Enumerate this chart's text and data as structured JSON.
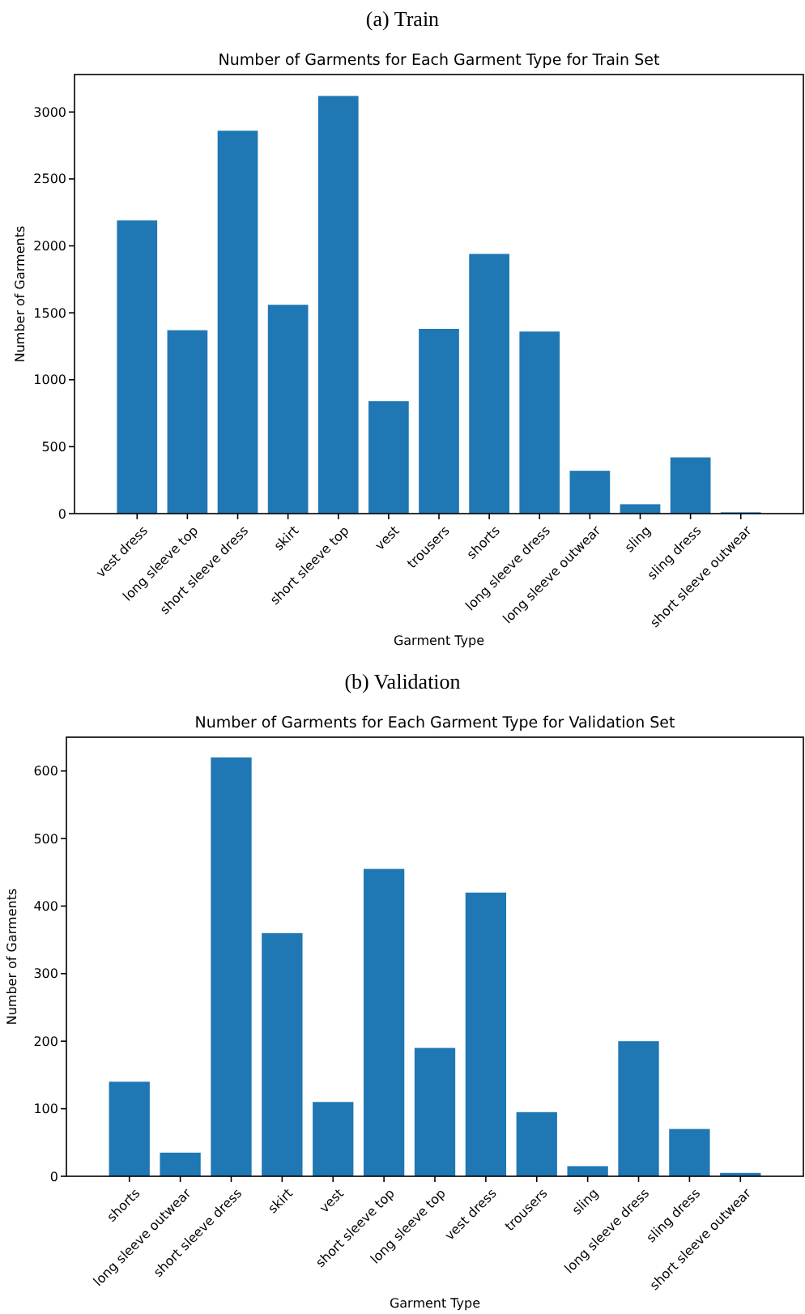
{
  "chart_data": [
    {
      "type": "bar",
      "title": "(a) Train",
      "subtitle": "Number of Garments for Each Garment Type for Train Set",
      "xlabel": "Garment Type",
      "ylabel": "Number of Garments",
      "categories": [
        "vest dress",
        "long sleeve top",
        "short sleeve dress",
        "skirt",
        "short sleeve top",
        "vest",
        "trousers",
        "shorts",
        "long sleeve dress",
        "long sleeve outwear",
        "sling",
        "sling dress",
        "short sleeve outwear"
      ],
      "values": [
        2190,
        1370,
        2860,
        1560,
        3120,
        840,
        1380,
        1940,
        1360,
        320,
        70,
        420,
        10
      ],
      "color": "#1f77b4",
      "ylim": [
        0,
        3280
      ],
      "yticks": [
        0,
        500,
        1000,
        1500,
        2000,
        2500,
        3000
      ]
    },
    {
      "type": "bar",
      "title": "(b) Validation",
      "subtitle": "Number of Garments for Each Garment Type for Validation Set",
      "xlabel": "Garment Type",
      "ylabel": "Number of Garments",
      "categories": [
        "shorts",
        "long sleeve outwear",
        "short sleeve dress",
        "skirt",
        "vest",
        "short sleeve top",
        "long sleeve top",
        "vest dress",
        "trousers",
        "sling",
        "long sleeve dress",
        "sling dress",
        "short sleeve outwear"
      ],
      "values": [
        140,
        35,
        620,
        360,
        110,
        455,
        190,
        420,
        95,
        15,
        200,
        70,
        5
      ],
      "color": "#1f77b4",
      "ylim": [
        0,
        650
      ],
      "yticks": [
        0,
        100,
        200,
        300,
        400,
        500,
        600
      ]
    }
  ]
}
